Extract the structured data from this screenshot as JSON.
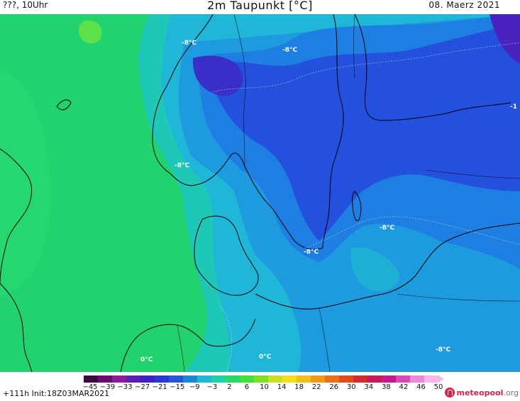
{
  "header": {
    "left": "???, 10Uhr",
    "title": "2m Taupunkt [°C]",
    "date": "08. Maerz 2021"
  },
  "map": {
    "contour_labels": {
      "norway_north": "-8°C",
      "central": "-8°C",
      "norway_south": "-8°C",
      "east_edge": "-1",
      "poland": "-8°C",
      "baltic": "-8°C",
      "se_corner": "-8°C",
      "netherlands": "0°C",
      "germany_north": "0°C"
    }
  },
  "legend": {
    "ticks": [
      "−45",
      "−39",
      "−33",
      "−27",
      "−21",
      "−15",
      "−9",
      "−3",
      "2",
      "6",
      "10",
      "14",
      "18",
      "22",
      "26",
      "30",
      "34",
      "38",
      "42",
      "46",
      "50"
    ],
    "colors": [
      "#3a0840",
      "#6a0a6e",
      "#8e1a9a",
      "#5a1fb0",
      "#3a24c4",
      "#2a3ad0",
      "#2456d6",
      "#1e86d8",
      "#1fb8d2",
      "#1ed2a8",
      "#2ad86a",
      "#3ee03a",
      "#7ce024",
      "#c8e020",
      "#f0e01c",
      "#f0c01a",
      "#f09a18",
      "#e87018",
      "#e04a1c",
      "#d62a2e",
      "#c81a5a",
      "#c61a8a",
      "#d84ab8",
      "#ee88d8",
      "#f6b8ec"
    ]
  },
  "footer": {
    "run": "+111h  Init:18Z03MAR2021"
  },
  "logo": {
    "main": "meteopool",
    "suffix": ".org"
  }
}
